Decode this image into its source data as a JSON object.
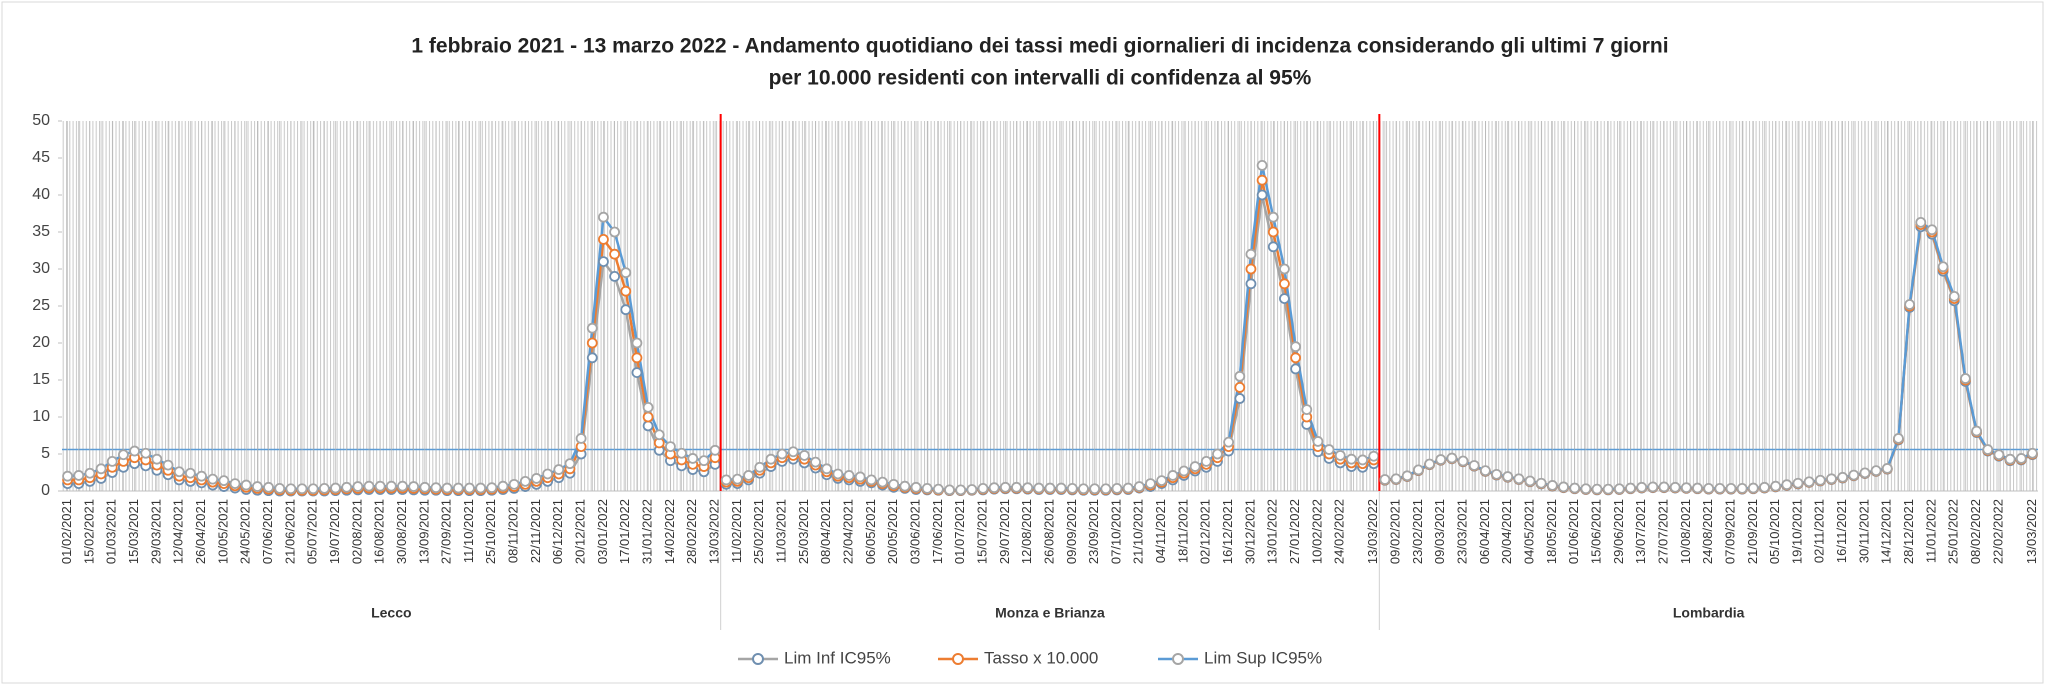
{
  "chart_data": {
    "type": "line",
    "title": [
      "1 febbraio 2021 - 13 marzo 2022 - Andamento quotidiano  dei tassi medi giornalieri  di incidenza  considerando  gli ultimi 7 giorni",
      "per 10.000 residenti con intervalli di confidenza  al 95%"
    ],
    "ylim": [
      0,
      50
    ],
    "yticks": [
      0,
      5,
      10,
      15,
      20,
      25,
      30,
      35,
      40,
      45,
      50
    ],
    "reference_line": 5.6,
    "reference_color": "#5b9bd5",
    "divider_color": "#ff0000",
    "grid": true,
    "legend": "bottom",
    "series": [
      {
        "name": "Lim Inf IC95%",
        "color": "#a5a5a5",
        "marker_color": "#6f8fb0"
      },
      {
        "name": "Tasso x 10.000",
        "color": "#ed7d31",
        "marker_color": "#ed7d31"
      },
      {
        "name": "Lim Sup IC95%",
        "color": "#5b9bd5",
        "marker_color": "#a5a5a5"
      }
    ],
    "groups": [
      {
        "name": "Lecco",
        "categories": [
          "01/02/2021",
          null,
          "15/02/2021",
          null,
          "01/03/2021",
          null,
          "15/03/2021",
          null,
          "29/03/2021",
          null,
          "12/04/2021",
          null,
          "26/04/2021",
          null,
          "10/05/2021",
          null,
          "24/05/2021",
          null,
          "07/06/2021",
          null,
          "21/06/2021",
          null,
          "05/07/2021",
          null,
          "19/07/2021",
          null,
          "02/08/2021",
          null,
          "16/08/2021",
          null,
          "30/08/2021",
          null,
          "13/09/2021",
          null,
          "27/09/2021",
          null,
          "11/10/2021",
          null,
          "25/10/2021",
          null,
          "08/11/2021",
          null,
          "22/11/2021",
          null,
          "06/12/2021",
          null,
          "20/12/2021",
          null,
          "03/01/2022",
          null,
          "17/01/2022",
          null,
          "31/01/2022",
          null,
          "14/02/2022",
          null,
          "28/02/2022",
          null,
          "13/03/2022"
        ],
        "series": [
          {
            "values": [
              1.0,
              1.0,
              1.3,
              1.7,
              2.5,
              3.2,
              3.7,
              3.4,
              2.8,
              2.2,
              1.5,
              1.3,
              1.1,
              0.8,
              0.6,
              0.4,
              0.2,
              0.1,
              0.05,
              0,
              0,
              0,
              0,
              0,
              0.05,
              0.1,
              0.15,
              0.2,
              0.2,
              0.2,
              0.2,
              0.15,
              0.1,
              0.1,
              0.05,
              0.05,
              0.05,
              0.05,
              0.1,
              0.2,
              0.35,
              0.6,
              0.9,
              1.3,
              1.8,
              2.4,
              5.0,
              18,
              31,
              29,
              24.5,
              16,
              8.8,
              5.5,
              4.1,
              3.4,
              2.9,
              2.6,
              3.6
            ]
          },
          {
            "values": [
              1.5,
              1.5,
              1.8,
              2.3,
              3.2,
              4.0,
              4.5,
              4.2,
              3.5,
              2.8,
              2.0,
              1.8,
              1.5,
              1.2,
              1.0,
              0.7,
              0.5,
              0.35,
              0.25,
              0.15,
              0.1,
              0.1,
              0.1,
              0.15,
              0.2,
              0.3,
              0.35,
              0.4,
              0.4,
              0.4,
              0.4,
              0.35,
              0.3,
              0.25,
              0.2,
              0.2,
              0.2,
              0.2,
              0.25,
              0.4,
              0.6,
              0.9,
              1.3,
              1.8,
              2.3,
              3.0,
              6.0,
              20,
              34,
              32,
              27,
              18,
              10,
              6.5,
              5,
              4.2,
              3.6,
              3.3,
              4.5
            ]
          },
          {
            "values": [
              2.0,
              2.1,
              2.4,
              3.0,
              4.0,
              4.9,
              5.4,
              5.1,
              4.3,
              3.5,
              2.6,
              2.4,
              2.0,
              1.6,
              1.4,
              1.0,
              0.8,
              0.6,
              0.5,
              0.35,
              0.3,
              0.3,
              0.3,
              0.35,
              0.4,
              0.5,
              0.6,
              0.65,
              0.65,
              0.65,
              0.65,
              0.6,
              0.5,
              0.45,
              0.4,
              0.4,
              0.4,
              0.4,
              0.45,
              0.65,
              0.9,
              1.3,
              1.7,
              2.3,
              2.9,
              3.7,
              7.1,
              22,
              37,
              35,
              29.5,
              20,
              11.3,
              7.6,
              6.0,
              5.1,
              4.4,
              4.1,
              5.5
            ]
          }
        ]
      },
      {
        "name": "Monza e Brianza",
        "categories": [
          null,
          "11/02/2021",
          null,
          "25/02/2021",
          null,
          "11/03/2021",
          null,
          "25/03/2021",
          null,
          "08/04/2021",
          null,
          "22/04/2021",
          null,
          "06/05/2021",
          null,
          "20/05/2021",
          null,
          "03/06/2021",
          null,
          "17/06/2021",
          null,
          "01/07/2021",
          null,
          "15/07/2021",
          null,
          "29/07/2021",
          null,
          "12/08/2021",
          null,
          "26/08/2021",
          null,
          "09/09/2021",
          null,
          "23/09/2021",
          null,
          "07/10/2021",
          null,
          "21/10/2021",
          null,
          "04/11/2021",
          null,
          "18/11/2021",
          null,
          "02/12/2021",
          null,
          "16/12/2021",
          null,
          "30/12/2021",
          null,
          "13/01/2022",
          null,
          "27/01/2022",
          null,
          "10/02/2022",
          null,
          "24/02/2022",
          null,
          null,
          "13/03/2022"
        ],
        "series": [
          {
            "values": [
              0.9,
              1.0,
              1.5,
              2.4,
              3.3,
              4.0,
              4.3,
              3.8,
              3.1,
              2.2,
              1.7,
              1.5,
              1.3,
              1.1,
              0.8,
              0.5,
              0.35,
              0.2,
              0.15,
              0.1,
              0.05,
              0.05,
              0.1,
              0.15,
              0.25,
              0.3,
              0.3,
              0.25,
              0.2,
              0.2,
              0.2,
              0.15,
              0.1,
              0.1,
              0.1,
              0.15,
              0.2,
              0.4,
              0.6,
              1.0,
              1.5,
              2.1,
              2.7,
              3.2,
              4.0,
              5.4,
              12.5,
              28,
              40,
              33,
              26,
              16.5,
              9,
              5.3,
              4.4,
              3.8,
              3.3,
              3.2,
              3.7
            ]
          },
          {
            "values": [
              1.2,
              1.3,
              1.8,
              2.8,
              3.8,
              4.5,
              4.8,
              4.3,
              3.5,
              2.6,
              2.0,
              1.8,
              1.6,
              1.3,
              1.0,
              0.7,
              0.5,
              0.35,
              0.25,
              0.15,
              0.1,
              0.1,
              0.15,
              0.25,
              0.35,
              0.4,
              0.4,
              0.35,
              0.3,
              0.3,
              0.3,
              0.25,
              0.2,
              0.2,
              0.2,
              0.25,
              0.3,
              0.5,
              0.8,
              1.2,
              1.8,
              2.4,
              3.0,
              3.6,
              4.5,
              6,
              14,
              30,
              42,
              35,
              28,
              18,
              10,
              6,
              5,
              4.3,
              3.8,
              3.7,
              4.2
            ]
          },
          {
            "values": [
              1.5,
              1.6,
              2.1,
              3.2,
              4.3,
              5.0,
              5.3,
              4.8,
              3.9,
              3.0,
              2.3,
              2.1,
              1.9,
              1.5,
              1.2,
              0.9,
              0.65,
              0.5,
              0.35,
              0.25,
              0.15,
              0.15,
              0.2,
              0.35,
              0.45,
              0.5,
              0.5,
              0.45,
              0.4,
              0.4,
              0.4,
              0.35,
              0.3,
              0.3,
              0.3,
              0.35,
              0.4,
              0.6,
              1.0,
              1.4,
              2.1,
              2.7,
              3.3,
              4.0,
              5.0,
              6.6,
              15.5,
              32,
              44,
              37,
              30,
              19.5,
              11,
              6.7,
              5.6,
              4.8,
              4.3,
              4.2,
              4.7
            ]
          }
        ]
      },
      {
        "name": "Lombardia",
        "categories": [
          null,
          "09/02/2021",
          null,
          "23/02/2021",
          null,
          "09/03/2021",
          null,
          "23/03/2021",
          null,
          "06/04/2021",
          null,
          "20/04/2021",
          null,
          "04/05/2021",
          null,
          "18/05/2021",
          null,
          "01/06/2021",
          null,
          "15/06/2021",
          null,
          "29/06/2021",
          null,
          "13/07/2021",
          null,
          "27/07/2021",
          null,
          "10/08/2021",
          null,
          "24/08/2021",
          null,
          "07/09/2021",
          null,
          "21/09/2021",
          null,
          "05/10/2021",
          null,
          "19/10/2021",
          null,
          "02/11/2021",
          null,
          "16/11/2021",
          null,
          "30/11/2021",
          null,
          "14/12/2021",
          null,
          "28/12/2021",
          null,
          "11/01/2022",
          null,
          "25/01/2022",
          null,
          "08/02/2022",
          null,
          "22/02/2022",
          null,
          null,
          "13/03/2022"
        ],
        "series": [
          {
            "values": [
              1.45,
              1.55,
              1.95,
              2.75,
              3.55,
              4.15,
              4.35,
              3.95,
              3.35,
              2.65,
              2.15,
              1.85,
              1.55,
              1.25,
              0.95,
              0.65,
              0.45,
              0.3,
              0.2,
              0.15,
              0.15,
              0.2,
              0.3,
              0.4,
              0.45,
              0.45,
              0.4,
              0.35,
              0.3,
              0.25,
              0.25,
              0.25,
              0.25,
              0.3,
              0.4,
              0.55,
              0.75,
              0.95,
              1.15,
              1.35,
              1.55,
              1.75,
              2.05,
              2.35,
              2.65,
              2.95,
              6.9,
              24.8,
              35.7,
              34.7,
              29.7,
              25.7,
              14.8,
              7.9,
              5.4,
              4.7,
              4.1,
              4.2,
              4.9
            ]
          },
          {
            "values": [
              1.5,
              1.6,
              2.0,
              2.8,
              3.6,
              4.2,
              4.4,
              4.0,
              3.4,
              2.7,
              2.2,
              1.9,
              1.6,
              1.3,
              1.0,
              0.7,
              0.5,
              0.35,
              0.25,
              0.2,
              0.2,
              0.25,
              0.35,
              0.45,
              0.5,
              0.5,
              0.45,
              0.4,
              0.35,
              0.3,
              0.3,
              0.3,
              0.3,
              0.35,
              0.45,
              0.6,
              0.8,
              1.0,
              1.2,
              1.4,
              1.6,
              1.8,
              2.1,
              2.4,
              2.7,
              3.0,
              7,
              25,
              36,
              35,
              30,
              26,
              15,
              8,
              5.5,
              4.8,
              4.2,
              4.3,
              5
            ]
          },
          {
            "values": [
              1.55,
              1.65,
              2.05,
              2.85,
              3.65,
              4.25,
              4.45,
              4.05,
              3.45,
              2.75,
              2.25,
              1.95,
              1.65,
              1.35,
              1.05,
              0.75,
              0.55,
              0.4,
              0.3,
              0.25,
              0.25,
              0.3,
              0.4,
              0.5,
              0.55,
              0.55,
              0.5,
              0.45,
              0.4,
              0.35,
              0.35,
              0.35,
              0.35,
              0.4,
              0.5,
              0.65,
              0.85,
              1.05,
              1.25,
              1.45,
              1.65,
              1.85,
              2.15,
              2.45,
              2.75,
              3.05,
              7.1,
              25.2,
              36.3,
              35.3,
              30.3,
              26.3,
              15.2,
              8.1,
              5.6,
              4.9,
              4.3,
              4.4,
              5.1
            ]
          }
        ]
      }
    ]
  }
}
